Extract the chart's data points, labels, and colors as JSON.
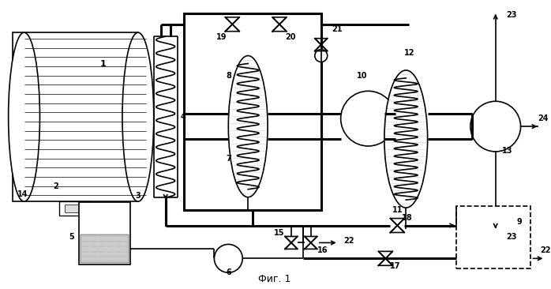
{
  "title": "Фиг. 1",
  "background_color": "#ffffff",
  "line_color": "#000000",
  "lw": 1.2,
  "tlw": 2.2,
  "fig_width": 6.98,
  "fig_height": 3.66
}
